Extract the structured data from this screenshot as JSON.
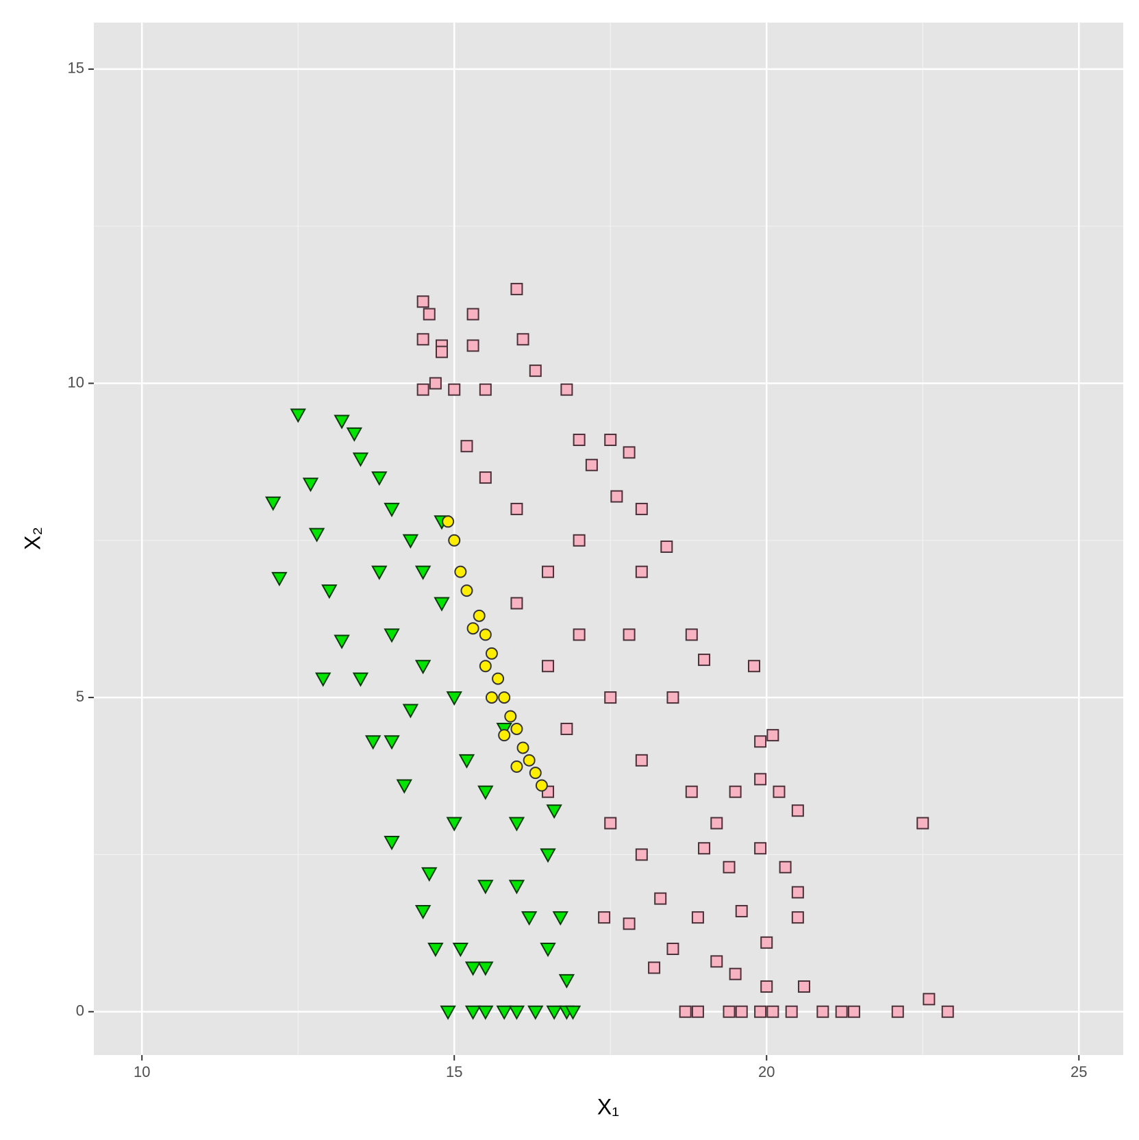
{
  "chart_data": {
    "type": "scatter",
    "xlabel": "X₁",
    "ylabel": "X₂",
    "xlim": [
      9.23,
      25.71
    ],
    "ylim": [
      -0.69,
      15.74
    ],
    "xticks": [
      10,
      15,
      20,
      25
    ],
    "yticks": [
      0,
      5,
      10,
      15
    ],
    "xminorticks": [
      12.5,
      17.5,
      22.5
    ],
    "yminorticks": [
      2.5,
      7.5,
      12.5
    ],
    "grid": true,
    "background": "#e5e5e5",
    "series": [
      {
        "marker": "square",
        "color": "#f7b3c1",
        "x": [
          16.0,
          14.5,
          14.6,
          15.3,
          14.5,
          14.8,
          14.8,
          15.3,
          16.1,
          16.3,
          14.5,
          14.7,
          15.0,
          15.5,
          16.8,
          17.0,
          17.5,
          17.8,
          17.2,
          17.6,
          18.0,
          18.4,
          18.0,
          18.8,
          19.0,
          19.8,
          19.9,
          20.1,
          19.9,
          20.2,
          20.5,
          19.5,
          19.2,
          19.0,
          19.9,
          20.3,
          20.5,
          20.5,
          20.0,
          19.4,
          19.6,
          18.9,
          18.5,
          18.2,
          17.8,
          17.4,
          16.5,
          15.5,
          16.0,
          16.5,
          17.0,
          17.5,
          18.0,
          16.8,
          17.5,
          18.0,
          16.0,
          15.2,
          16.5,
          17.0,
          17.8,
          18.5,
          18.8,
          18.3,
          20.0,
          20.6,
          22.5,
          22.6,
          18.7,
          18.9,
          19.4,
          19.6,
          19.9,
          20.1,
          20.4,
          20.9,
          21.2,
          21.4,
          22.1,
          22.9,
          19.5,
          19.2
        ],
        "y": [
          11.5,
          11.3,
          11.1,
          11.1,
          10.7,
          10.6,
          10.5,
          10.6,
          10.7,
          10.2,
          9.9,
          10.0,
          9.9,
          9.9,
          9.9,
          9.1,
          9.1,
          8.9,
          8.7,
          8.2,
          8.0,
          7.4,
          7.0,
          6.0,
          5.6,
          5.5,
          4.3,
          4.4,
          3.7,
          3.5,
          3.2,
          3.5,
          3.0,
          2.6,
          2.6,
          2.3,
          1.9,
          1.5,
          1.1,
          2.3,
          1.6,
          1.5,
          1.0,
          0.7,
          1.4,
          1.5,
          3.5,
          8.5,
          8.0,
          7.0,
          6.0,
          5.0,
          4.0,
          4.5,
          3.0,
          2.5,
          6.5,
          9.0,
          5.5,
          7.5,
          6.0,
          5.0,
          3.5,
          1.8,
          0.4,
          0.4,
          3.0,
          0.2,
          0,
          0,
          0,
          0,
          0,
          0,
          0,
          0,
          0,
          0,
          0,
          0,
          0.6,
          0.8
        ]
      },
      {
        "marker": "triangle-down",
        "color": "#00e400",
        "x": [
          12.5,
          13.2,
          12.1,
          12.2,
          12.7,
          12.8,
          13.0,
          13.2,
          12.9,
          13.5,
          13.7,
          14.0,
          14.2,
          14.0,
          14.6,
          14.7,
          15.1,
          15.3,
          15.5,
          14.5,
          13.5,
          13.8,
          14.0,
          14.3,
          14.5,
          13.8,
          14.0,
          14.5,
          15.0,
          14.3,
          15.2,
          15.5,
          16.0,
          16.5,
          16.0,
          16.7,
          16.5,
          16.8,
          15.8,
          15.0,
          14.8,
          15.5,
          16.2,
          14.9,
          15.3,
          15.5,
          15.8,
          16.0,
          16.3,
          16.6,
          16.8,
          16.9,
          13.4,
          14.8,
          16.6
        ],
        "y": [
          9.5,
          9.4,
          8.1,
          6.9,
          8.4,
          7.6,
          6.7,
          5.9,
          5.3,
          5.3,
          4.3,
          4.3,
          3.6,
          2.7,
          2.2,
          1.0,
          1.0,
          0.7,
          0.7,
          1.6,
          8.8,
          8.5,
          8.0,
          7.5,
          7.0,
          7.0,
          6.0,
          5.5,
          5.0,
          4.8,
          4.0,
          3.5,
          3.0,
          2.5,
          2.0,
          1.5,
          1.0,
          0.5,
          4.5,
          3.0,
          6.5,
          2.0,
          1.5,
          0,
          0,
          0,
          0,
          0,
          0,
          0,
          0,
          0,
          9.2,
          7.8,
          3.2
        ]
      },
      {
        "marker": "circle",
        "color": "#ffee00",
        "x": [
          14.9,
          15.0,
          15.1,
          15.2,
          15.4,
          15.5,
          15.6,
          15.7,
          15.8,
          15.9,
          16.0,
          16.1,
          16.2,
          16.3,
          16.4,
          15.6,
          15.8,
          15.3,
          15.5,
          16.0
        ],
        "y": [
          7.8,
          7.5,
          7.0,
          6.7,
          6.3,
          6.0,
          5.7,
          5.3,
          5.0,
          4.7,
          4.5,
          4.2,
          4.0,
          3.8,
          3.6,
          5.0,
          4.4,
          6.1,
          5.5,
          3.9
        ]
      }
    ]
  }
}
